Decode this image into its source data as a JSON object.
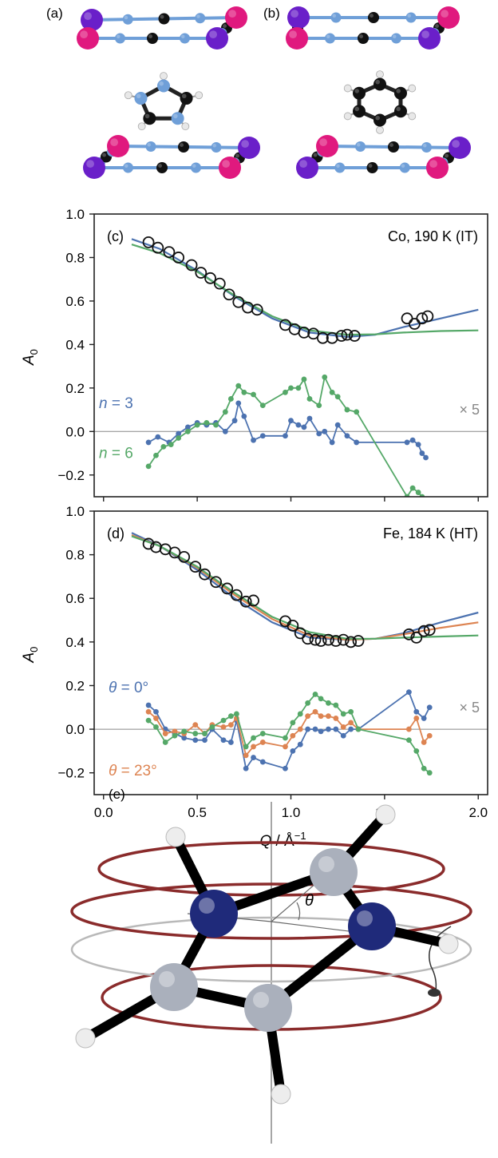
{
  "panels": {
    "a": {
      "label": "(a)"
    },
    "b": {
      "label": "(b)"
    },
    "e": {
      "label": "(e)",
      "theta": "θ"
    }
  },
  "colors": {
    "blue": "#4c72b0",
    "green": "#55a868",
    "orange": "#dd8452",
    "ring": "#8a2b2b",
    "magenta": "#e0197e",
    "violet": "#6a1fc9",
    "lightblue": "#6f9fd8",
    "black": "#111111",
    "gray": "#aab0bc",
    "navy": "#1f2a7a"
  },
  "chart_data": [
    {
      "id": "c",
      "type": "line",
      "panel_label": "(c)",
      "annotation": "Co, 190 K (IT)",
      "ylabel": "A",
      "ylabel_sub": "0",
      "xlim": [
        -0.05,
        2.05
      ],
      "ylim": [
        -0.3,
        1.0
      ],
      "xticks": [
        "0.0",
        "0.5",
        "1.0",
        "1.5",
        "2.0"
      ],
      "yticks": [
        "−0.2",
        "0.0",
        "0.2",
        "0.4",
        "0.6",
        "0.8",
        "1.0"
      ],
      "scale_note": "× 5",
      "series_labels": [
        {
          "text": "n = 3",
          "var": "n",
          "rest": " = 3",
          "color": "#4c72b0"
        },
        {
          "text": "n = 6",
          "var": "n",
          "rest": " = 6",
          "color": "#55a868"
        }
      ],
      "observed": {
        "x": [
          0.24,
          0.29,
          0.35,
          0.4,
          0.47,
          0.52,
          0.57,
          0.62,
          0.67,
          0.72,
          0.77,
          0.82,
          0.97,
          1.02,
          1.07,
          1.12,
          1.17,
          1.22,
          1.27,
          1.3,
          1.34,
          1.62,
          1.66,
          1.7,
          1.73
        ],
        "y": [
          0.87,
          0.845,
          0.825,
          0.8,
          0.765,
          0.73,
          0.705,
          0.68,
          0.63,
          0.595,
          0.57,
          0.56,
          0.49,
          0.47,
          0.455,
          0.45,
          0.43,
          0.43,
          0.44,
          0.445,
          0.44,
          0.52,
          0.495,
          0.52,
          0.53
        ]
      },
      "fits": [
        {
          "name": "n = 3",
          "color": "#4c72b0",
          "x": [
            0.15,
            0.3,
            0.5,
            0.7,
            0.9,
            1.1,
            1.3,
            1.45,
            1.6,
            1.8,
            2.0
          ],
          "y": [
            0.885,
            0.84,
            0.74,
            0.62,
            0.52,
            0.455,
            0.435,
            0.445,
            0.48,
            0.52,
            0.56
          ]
        },
        {
          "name": "n = 6",
          "color": "#55a868",
          "x": [
            0.15,
            0.3,
            0.5,
            0.7,
            0.9,
            1.1,
            1.3,
            1.45,
            1.6,
            1.8,
            2.0
          ],
          "y": [
            0.86,
            0.82,
            0.735,
            0.625,
            0.53,
            0.465,
            0.445,
            0.447,
            0.455,
            0.462,
            0.465
          ]
        }
      ],
      "residuals": [
        {
          "name": "n = 3",
          "color": "#4c72b0",
          "x": [
            0.24,
            0.29,
            0.35,
            0.4,
            0.45,
            0.5,
            0.55,
            0.6,
            0.65,
            0.7,
            0.72,
            0.75,
            0.8,
            0.85,
            0.97,
            1.0,
            1.04,
            1.07,
            1.1,
            1.15,
            1.18,
            1.22,
            1.25,
            1.3,
            1.35,
            1.62,
            1.65,
            1.68,
            1.7,
            1.72
          ],
          "y": [
            -0.05,
            -0.025,
            -0.05,
            -0.01,
            0.02,
            0.04,
            0.03,
            0.04,
            0.0,
            0.05,
            0.13,
            0.07,
            -0.04,
            -0.02,
            -0.02,
            0.05,
            0.03,
            0.02,
            0.06,
            -0.01,
            0.0,
            -0.05,
            0.03,
            -0.02,
            -0.05,
            -0.05,
            -0.04,
            -0.06,
            -0.1,
            -0.12
          ]
        },
        {
          "name": "n = 6",
          "color": "#55a868",
          "x": [
            0.24,
            0.28,
            0.32,
            0.36,
            0.4,
            0.45,
            0.5,
            0.55,
            0.6,
            0.65,
            0.68,
            0.72,
            0.75,
            0.8,
            0.85,
            0.97,
            1.0,
            1.04,
            1.07,
            1.1,
            1.15,
            1.18,
            1.22,
            1.25,
            1.3,
            1.35,
            1.62,
            1.65,
            1.68,
            1.7
          ],
          "y": [
            -0.16,
            -0.11,
            -0.07,
            -0.06,
            -0.03,
            0.0,
            0.03,
            0.04,
            0.03,
            0.09,
            0.15,
            0.21,
            0.18,
            0.17,
            0.12,
            0.18,
            0.2,
            0.2,
            0.24,
            0.15,
            0.12,
            0.25,
            0.18,
            0.16,
            0.1,
            0.09,
            -0.3,
            -0.26,
            -0.28,
            -0.3
          ]
        }
      ]
    },
    {
      "id": "d",
      "type": "line",
      "panel_label": "(d)",
      "annotation": "Fe, 184 K (HT)",
      "ylabel": "A",
      "ylabel_sub": "0",
      "xlabel": "Q / Å",
      "xlabel_sup": "−1",
      "xlim": [
        -0.05,
        2.05
      ],
      "ylim": [
        -0.3,
        1.0
      ],
      "xticks": [
        "0.0",
        "0.5",
        "1.0",
        "1.5",
        "2.0"
      ],
      "yticks": [
        "−0.2",
        "0.0",
        "0.2",
        "0.4",
        "0.6",
        "0.8",
        "1.0"
      ],
      "scale_note": "× 5",
      "series_labels": [
        {
          "text": "θ = 0°",
          "var": "θ",
          "rest": " = 0°",
          "color": "#4c72b0"
        },
        {
          "text": "θ = 23°",
          "var": "θ",
          "rest": " = 23°",
          "color": "#dd8452"
        }
      ],
      "observed": {
        "x": [
          0.24,
          0.28,
          0.33,
          0.38,
          0.43,
          0.49,
          0.54,
          0.6,
          0.66,
          0.71,
          0.76,
          0.8,
          0.97,
          1.01,
          1.05,
          1.09,
          1.13,
          1.16,
          1.2,
          1.24,
          1.28,
          1.32,
          1.36,
          1.63,
          1.67,
          1.71,
          1.74
        ],
        "y": [
          0.85,
          0.835,
          0.825,
          0.81,
          0.79,
          0.745,
          0.71,
          0.675,
          0.645,
          0.615,
          0.585,
          0.59,
          0.495,
          0.475,
          0.44,
          0.415,
          0.41,
          0.405,
          0.41,
          0.405,
          0.41,
          0.4,
          0.405,
          0.435,
          0.42,
          0.45,
          0.455
        ]
      },
      "fits": [
        {
          "name": "θ = 0°",
          "color": "#4c72b0",
          "x": [
            0.15,
            0.3,
            0.5,
            0.7,
            0.9,
            1.1,
            1.3,
            1.45,
            1.6,
            1.8,
            2.0
          ],
          "y": [
            0.9,
            0.84,
            0.73,
            0.6,
            0.49,
            0.42,
            0.41,
            0.415,
            0.44,
            0.49,
            0.535
          ]
        },
        {
          "name": "θ = 23°",
          "color": "#dd8452",
          "x": [
            0.15,
            0.3,
            0.5,
            0.7,
            0.9,
            1.1,
            1.3,
            1.45,
            1.6,
            1.8,
            2.0
          ],
          "y": [
            0.89,
            0.84,
            0.74,
            0.615,
            0.505,
            0.43,
            0.41,
            0.415,
            0.435,
            0.465,
            0.49
          ]
        },
        {
          "name": "green",
          "color": "#55a868",
          "x": [
            0.15,
            0.3,
            0.5,
            0.7,
            0.9,
            1.1,
            1.3,
            1.45,
            1.6,
            1.8,
            2.0
          ],
          "y": [
            0.885,
            0.84,
            0.745,
            0.625,
            0.515,
            0.445,
            0.415,
            0.415,
            0.42,
            0.425,
            0.43
          ]
        }
      ],
      "residuals": [
        {
          "name": "θ = 0°",
          "color": "#4c72b0",
          "x": [
            0.24,
            0.28,
            0.33,
            0.38,
            0.43,
            0.49,
            0.54,
            0.58,
            0.64,
            0.68,
            0.71,
            0.76,
            0.8,
            0.85,
            0.97,
            1.01,
            1.05,
            1.09,
            1.13,
            1.16,
            1.2,
            1.24,
            1.28,
            1.32,
            1.36,
            1.63,
            1.67,
            1.71,
            1.74
          ],
          "y": [
            0.11,
            0.08,
            0.0,
            -0.02,
            -0.04,
            -0.05,
            -0.05,
            0.0,
            -0.05,
            -0.06,
            0.04,
            -0.18,
            -0.13,
            -0.15,
            -0.18,
            -0.1,
            -0.07,
            0.0,
            0.0,
            -0.01,
            0.0,
            0.0,
            -0.03,
            0.0,
            0.0,
            0.17,
            0.08,
            0.05,
            0.1
          ]
        },
        {
          "name": "θ = 23°",
          "color": "#dd8452",
          "x": [
            0.24,
            0.28,
            0.33,
            0.38,
            0.43,
            0.49,
            0.54,
            0.58,
            0.64,
            0.68,
            0.71,
            0.76,
            0.8,
            0.85,
            0.97,
            1.01,
            1.05,
            1.09,
            1.13,
            1.16,
            1.2,
            1.24,
            1.28,
            1.32,
            1.36,
            1.63,
            1.67,
            1.71,
            1.74
          ],
          "y": [
            0.08,
            0.05,
            -0.02,
            -0.01,
            -0.02,
            0.02,
            -0.02,
            0.02,
            0.01,
            0.02,
            0.05,
            -0.12,
            -0.08,
            -0.06,
            -0.08,
            -0.03,
            0.0,
            0.06,
            0.08,
            0.06,
            0.06,
            0.05,
            0.01,
            0.03,
            0.0,
            0.0,
            0.05,
            -0.06,
            -0.03
          ]
        },
        {
          "name": "green",
          "color": "#55a868",
          "x": [
            0.24,
            0.28,
            0.33,
            0.38,
            0.43,
            0.49,
            0.54,
            0.58,
            0.64,
            0.68,
            0.71,
            0.76,
            0.8,
            0.85,
            0.97,
            1.01,
            1.05,
            1.09,
            1.13,
            1.16,
            1.2,
            1.24,
            1.28,
            1.32,
            1.36,
            1.63,
            1.67,
            1.71,
            1.74
          ],
          "y": [
            0.04,
            0.01,
            -0.06,
            -0.03,
            -0.01,
            -0.02,
            -0.02,
            0.01,
            0.04,
            0.06,
            0.07,
            -0.08,
            -0.04,
            -0.02,
            -0.04,
            0.03,
            0.07,
            0.12,
            0.16,
            0.14,
            0.12,
            0.11,
            0.07,
            0.08,
            0.0,
            -0.05,
            -0.1,
            -0.18,
            -0.2
          ]
        }
      ]
    }
  ]
}
